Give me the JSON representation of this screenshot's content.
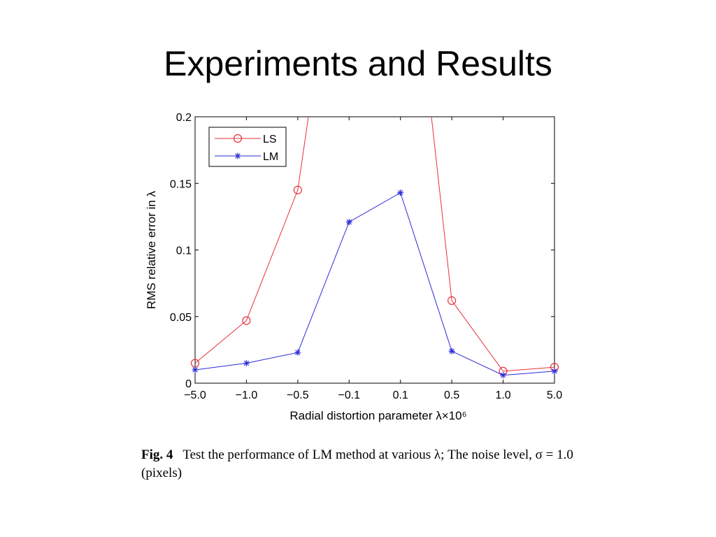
{
  "slide": {
    "title": "Experiments and Results"
  },
  "caption": {
    "label": "Fig. 4",
    "text": "Test the performance of LM method at various λ; The noise level, σ = 1.0 (pixels)"
  },
  "chart_data": {
    "type": "line",
    "categories": [
      "−5.0",
      "−1.0",
      "−0.5",
      "−0.1",
      "0.1",
      "0.5",
      "1.0",
      "5.0"
    ],
    "xlabel": "Radial distortion parameter λ×10⁶",
    "ylabel": "RMS relative error in λ",
    "ylim": [
      0,
      0.2
    ],
    "yticks": [
      "0",
      "0.05",
      "0.1",
      "0.15",
      "0.2"
    ],
    "legend_position": "top-left",
    "grid": false,
    "series": [
      {
        "name": "LS",
        "color": "#e8303a",
        "marker": "circle",
        "values": [
          0.015,
          0.047,
          0.145,
          null,
          null,
          0.062,
          0.009,
          0.012
        ],
        "note_offscale": "values at −0.1 and 0.1 exceed 0.2"
      },
      {
        "name": "LM",
        "color": "#2b2bd9",
        "marker": "asterisk",
        "values": [
          0.01,
          0.015,
          0.023,
          0.121,
          0.143,
          0.024,
          0.006,
          0.009
        ]
      }
    ]
  }
}
